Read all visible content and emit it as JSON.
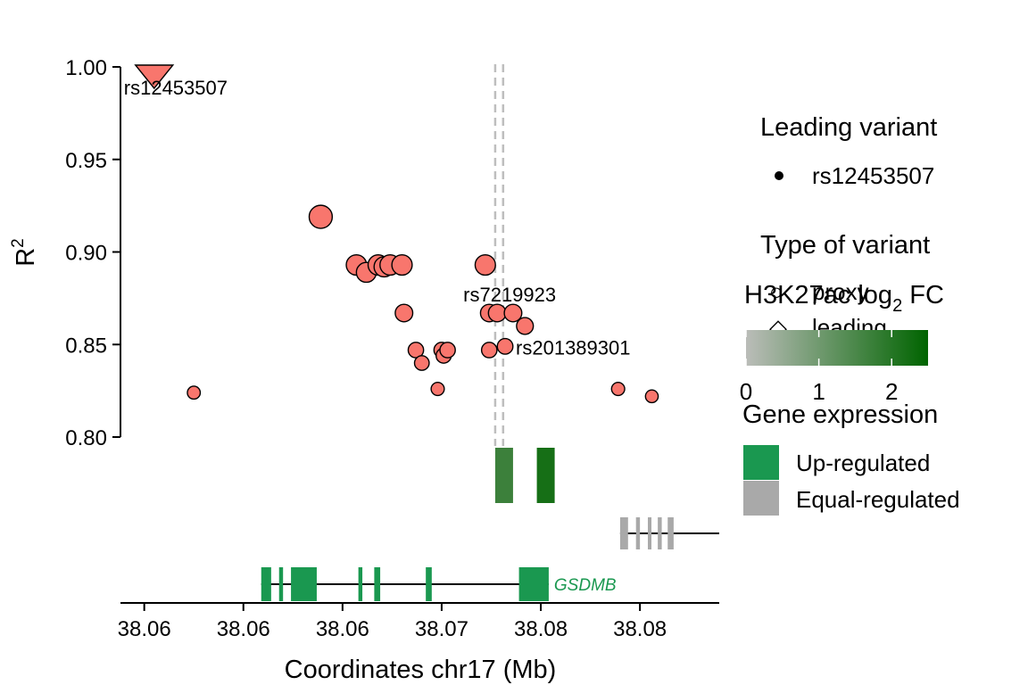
{
  "chart_data": {
    "type": "scatter",
    "xlabel": "Coordinates chr17 (Mb)",
    "ylabel": "R",
    "ylabel_sup": "2",
    "ylim": [
      0.8,
      1.0
    ],
    "yticks": [
      0.8,
      0.85,
      0.9,
      0.95,
      1.0
    ],
    "ytick_labels": [
      "0.80",
      "0.85",
      "0.90",
      "0.95",
      "1.00"
    ],
    "xlim": [
      38.0563,
      38.0865
    ],
    "xticks": [
      38.0575,
      38.0625,
      38.0675,
      38.0725,
      38.0775,
      38.0825
    ],
    "xtick_labels": [
      "38.06",
      "38.06",
      "38.06",
      "38.07",
      "38.08",
      "38.08"
    ],
    "point_color": "#F8766D",
    "leading_variant": {
      "x": 38.058,
      "y": 1.0,
      "label": "rs12453507"
    },
    "variants": [
      {
        "x": 38.06,
        "y": 0.824,
        "r2size": 0.824
      },
      {
        "x": 38.0664,
        "y": 0.919,
        "r2size": 0.919
      },
      {
        "x": 38.0682,
        "y": 0.893,
        "r2size": 0.893
      },
      {
        "x": 38.0687,
        "y": 0.889,
        "r2size": 0.889
      },
      {
        "x": 38.0693,
        "y": 0.893,
        "r2size": 0.893
      },
      {
        "x": 38.0696,
        "y": 0.892,
        "r2size": 0.892
      },
      {
        "x": 38.0699,
        "y": 0.893,
        "r2size": 0.893
      },
      {
        "x": 38.0705,
        "y": 0.893,
        "r2size": 0.893
      },
      {
        "x": 38.0706,
        "y": 0.867,
        "r2size": 0.867
      },
      {
        "x": 38.0712,
        "y": 0.847,
        "r2size": 0.847
      },
      {
        "x": 38.0715,
        "y": 0.84,
        "r2size": 0.84
      },
      {
        "x": 38.0723,
        "y": 0.826,
        "r2size": 0.826
      },
      {
        "x": 38.0725,
        "y": 0.847,
        "r2size": 0.847
      },
      {
        "x": 38.0726,
        "y": 0.844,
        "r2size": 0.844
      },
      {
        "x": 38.0728,
        "y": 0.847,
        "r2size": 0.847
      },
      {
        "x": 38.0747,
        "y": 0.893,
        "r2size": 0.893
      },
      {
        "x": 38.0749,
        "y": 0.867,
        "r2size": 0.867
      },
      {
        "x": 38.0749,
        "y": 0.847,
        "r2size": 0.847
      },
      {
        "x": 38.0753,
        "y": 0.867,
        "r2size": 0.867,
        "label": "rs7219923"
      },
      {
        "x": 38.0757,
        "y": 0.849,
        "r2size": 0.849,
        "label": "rs201389301"
      },
      {
        "x": 38.0761,
        "y": 0.867,
        "r2size": 0.867
      },
      {
        "x": 38.0767,
        "y": 0.86,
        "r2size": 0.86
      },
      {
        "x": 38.0814,
        "y": 0.826,
        "r2size": 0.826
      },
      {
        "x": 38.0831,
        "y": 0.822,
        "r2size": 0.822
      }
    ],
    "vlines": [
      38.0752,
      38.0756
    ],
    "h3k27ac_peaks": [
      {
        "x0": 38.0752,
        "x1": 38.0761,
        "fc": 1.7
      },
      {
        "x0": 38.0773,
        "x1": 38.0782,
        "fc": 2.2
      }
    ],
    "genes": [
      {
        "name": "GSDMB",
        "regulation": "Up-regulated",
        "x0": 38.0634,
        "x1": 38.0779,
        "exons": [
          [
            38.0634,
            38.0639
          ],
          [
            38.0643,
            38.0645
          ],
          [
            38.0649,
            38.0662
          ],
          [
            38.0683,
            38.0685
          ],
          [
            38.0691,
            38.0694
          ],
          [
            38.0717,
            38.072
          ],
          [
            38.0764,
            38.0779
          ]
        ]
      },
      {
        "name": "",
        "regulation": "Equal-regulated",
        "x0": 38.0815,
        "x1": 38.0845,
        "exons": [
          [
            38.0815,
            38.0819
          ],
          [
            38.0823,
            38.0825
          ],
          [
            38.0829,
            38.083
          ],
          [
            38.0834,
            38.0836
          ],
          [
            38.0839,
            38.0842
          ]
        ]
      }
    ],
    "legend": {
      "leading_title": "Leading variant",
      "leading_item": "rs12453507",
      "type_title": "Type of variant",
      "type_items": [
        "proxy",
        "leading"
      ],
      "h3_title": "H3K27ac log",
      "h3_title_sub": "2",
      "h3_title_tail": " FC",
      "h3_ticks": [
        "0",
        "1",
        "2"
      ],
      "h3_range": [
        0,
        2.5
      ],
      "h3_low_color": "#BBBDB9",
      "h3_high_color": "#006400",
      "gene_title": "Gene expression",
      "gene_items": [
        {
          "label": "Up-regulated",
          "color": "#1A9850"
        },
        {
          "label": "Equal-regulated",
          "color": "#A9A9A9"
        }
      ]
    }
  }
}
